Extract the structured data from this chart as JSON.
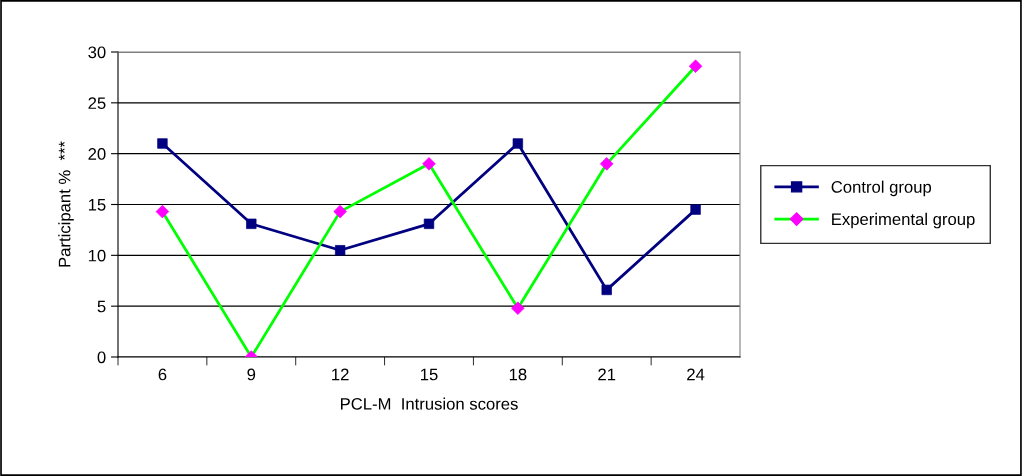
{
  "chart_data": {
    "type": "line",
    "xlabel": "PCL-M  Intrusion scores",
    "ylabel": "Participant %  ***",
    "categories": [
      "6",
      "9",
      "12",
      "15",
      "18",
      "21",
      "24"
    ],
    "series": [
      {
        "name": "Control group",
        "color": "#000080",
        "marker": "square",
        "values": [
          21,
          13.1,
          10.5,
          13.1,
          21,
          6.6,
          14.5
        ]
      },
      {
        "name": "Experimental group",
        "color": "#00ff00",
        "colors": [
          "#ff00ff",
          "#ff00ff",
          "#ff00ff",
          "#ff00ff",
          "#ff00ff",
          "#ff00ff",
          "#ff00ff"
        ],
        "marker": "diamond",
        "values": [
          14.3,
          0,
          14.3,
          19,
          4.8,
          19,
          28.6
        ]
      }
    ],
    "ylim": [
      0,
      30
    ],
    "yticks": [
      0,
      5,
      10,
      15,
      20,
      25,
      30
    ],
    "grid": "y",
    "legend": "right"
  }
}
